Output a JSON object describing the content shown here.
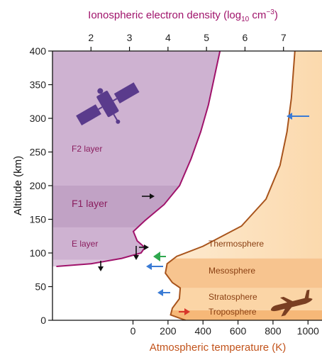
{
  "chart_data": {
    "type": "line",
    "top_axis": {
      "label_prefix": "Ionospheric electron density (log",
      "label_sub": "10",
      "label_suffix": " cm",
      "label_sup": "−3",
      "label_close": ")",
      "ticks": [
        "2",
        "3",
        "4",
        "5",
        "6",
        "7"
      ],
      "tick_values": [
        2,
        3,
        4,
        5,
        6,
        7
      ],
      "range": [
        1.0,
        8.0
      ]
    },
    "bottom_axis": {
      "label": "Atmospheric temperature (K)",
      "ticks": [
        "0",
        "200",
        "400",
        "600",
        "800",
        "1000"
      ],
      "tick_values": [
        0,
        200,
        400,
        600,
        800,
        1000
      ],
      "range": [
        -460,
        1080
      ]
    },
    "y_axis": {
      "label": "Altitude (km)",
      "ticks": [
        "0",
        "50",
        "100",
        "150",
        "200",
        "250",
        "300",
        "350",
        "400"
      ],
      "tick_values": [
        0,
        50,
        100,
        150,
        200,
        250,
        300,
        350,
        400
      ],
      "range": [
        0,
        400
      ]
    },
    "series": [
      {
        "axis": "top",
        "color": "#a0136b",
        "points": [
          [
            1.1,
            80
          ],
          [
            2.0,
            84
          ],
          [
            2.8,
            92
          ],
          [
            3.3,
            100
          ],
          [
            3.4,
            108
          ],
          [
            3.2,
            118
          ],
          [
            3.1,
            132
          ],
          [
            3.4,
            148
          ],
          [
            3.9,
            172
          ],
          [
            4.3,
            200
          ],
          [
            4.6,
            240
          ],
          [
            4.85,
            280
          ],
          [
            5.05,
            320
          ],
          [
            5.2,
            360
          ],
          [
            5.35,
            400
          ]
        ]
      },
      {
        "axis": "bottom",
        "color": "#a8541c",
        "points": [
          [
            300,
            0
          ],
          [
            215,
            8
          ],
          [
            225,
            18
          ],
          [
            265,
            32
          ],
          [
            270,
            48
          ],
          [
            225,
            56
          ],
          [
            185,
            70
          ],
          [
            195,
            84
          ],
          [
            250,
            95
          ],
          [
            400,
            110
          ],
          [
            620,
            140
          ],
          [
            760,
            180
          ],
          [
            840,
            230
          ],
          [
            880,
            280
          ],
          [
            905,
            330
          ],
          [
            915,
            365
          ],
          [
            925,
            400
          ]
        ]
      }
    ],
    "iono_layers": [
      {
        "label": "E layer",
        "from": 90,
        "to": 138
      },
      {
        "label": "F1 layer",
        "from": 138,
        "to": 200
      },
      {
        "label": "F2 layer",
        "from": 200,
        "to": 400
      }
    ],
    "atmo_layers": [
      {
        "label": "Troposphere",
        "from": 0,
        "to": 15
      },
      {
        "label": "Stratosphere",
        "from": 15,
        "to": 48
      },
      {
        "label": "Mesosphere",
        "from": 48,
        "to": 92
      },
      {
        "label": "Thermosphere",
        "from": 92,
        "to": 400
      }
    ],
    "colors": {
      "iono_fill_light": "#dcc6dd",
      "iono_fill_mid": "#c9abcc",
      "iono_fill_dark": "#b895bc",
      "iono_line": "#a0136b",
      "thermo_fill": "#fde6c6",
      "meso_fill": "#f7c48f",
      "strato_fill": "#fbd5a6",
      "tropo_fill": "#f6b878",
      "temp_line": "#a8541c",
      "arrow_blue": "#3a7bd5",
      "arrow_black": "#111111",
      "arrow_green": "#2fa84f",
      "arrow_red": "#d8352a",
      "satellite": "#5a3b8c",
      "airplane": "#7a3f22"
    },
    "icons": [
      "satellite-icon",
      "airplane-icon"
    ]
  }
}
